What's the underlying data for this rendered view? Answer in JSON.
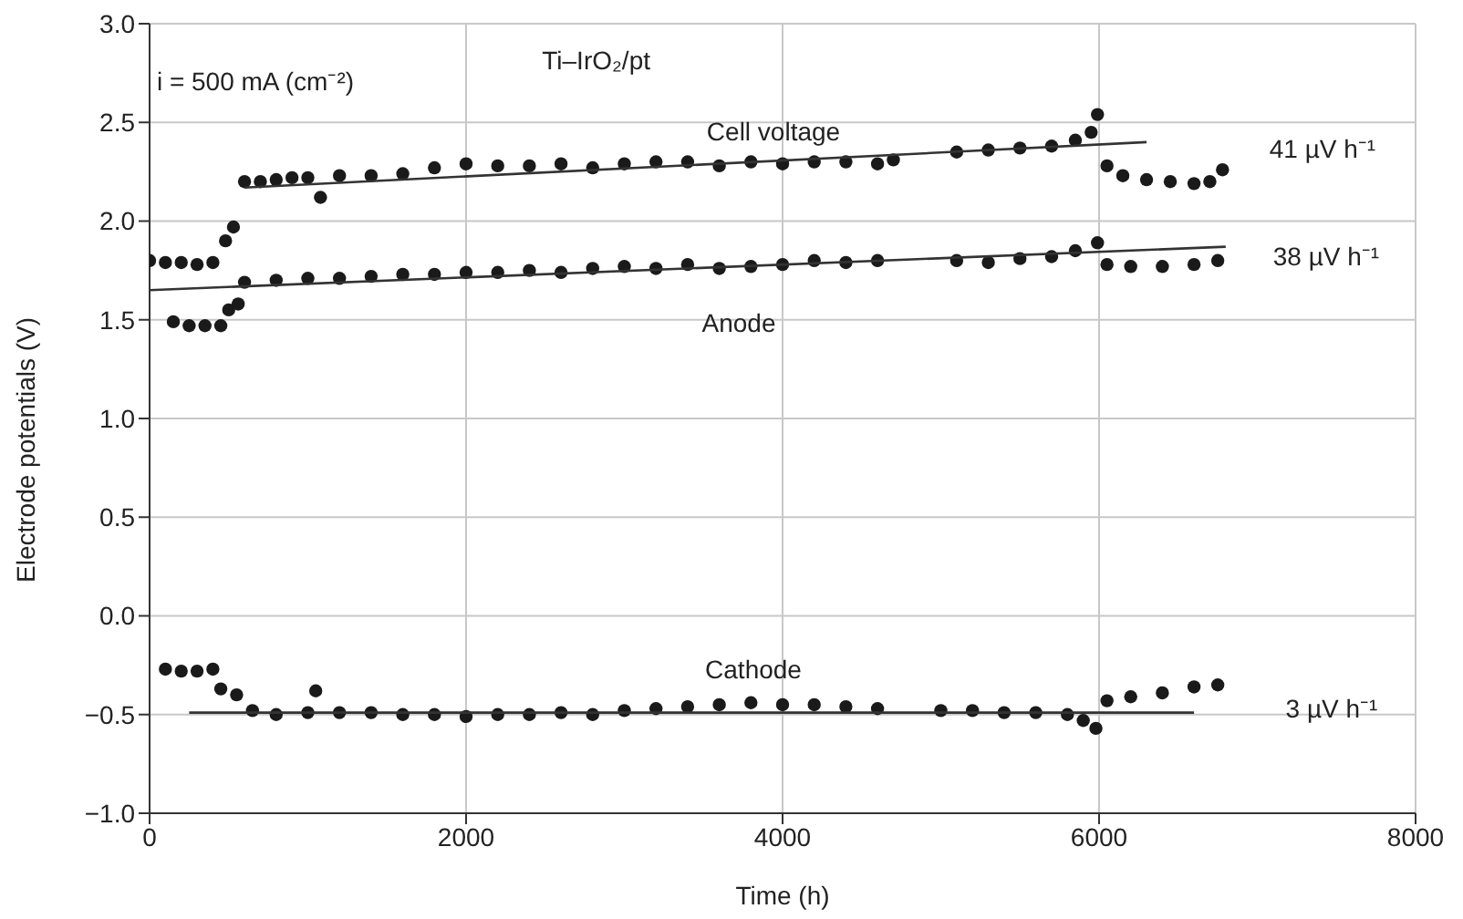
{
  "chart_data": {
    "type": "scatter",
    "title": "Ti–IrO₂/pt",
    "xlabel": "Time (h)",
    "ylabel": "Electrode potentials (V)",
    "xlim": [
      0,
      8000
    ],
    "xticks": [
      0,
      2000,
      4000,
      6000,
      8000
    ],
    "ylim": [
      -1,
      3
    ],
    "yticks": [
      {
        "value": -1,
        "label": "−1.0"
      },
      {
        "value": -0.5,
        "label": "−0.5"
      },
      {
        "value": 0,
        "label": "0.0"
      },
      {
        "value": 0.5,
        "label": "0.5"
      },
      {
        "value": 1,
        "label": "1.0"
      },
      {
        "value": 1.5,
        "label": "1.5"
      },
      {
        "value": 2,
        "label": "2.0"
      },
      {
        "value": 2.5,
        "label": "2.5"
      },
      {
        "value": 3,
        "label": "3.0"
      }
    ],
    "grid": true,
    "series": [
      {
        "color": "#1a1a1a",
        "marker": "circle",
        "x": [
          0,
          100,
          200,
          300,
          400,
          480,
          530,
          600,
          700,
          800,
          900,
          1000,
          1080,
          1200,
          1400,
          1600,
          1800,
          2000,
          2200,
          2400,
          2600,
          2800,
          3000,
          3200,
          3400,
          3600,
          3800,
          4000,
          4200,
          4400,
          4600,
          4700,
          5100,
          5300,
          5500,
          5700,
          5850,
          5950,
          5990,
          6050,
          6150,
          6300,
          6450,
          6600,
          6700,
          6780
        ],
        "values": [
          1.8,
          1.79,
          1.79,
          1.78,
          1.79,
          1.9,
          1.97,
          2.2,
          2.2,
          2.21,
          2.22,
          2.22,
          2.12,
          2.23,
          2.23,
          2.24,
          2.27,
          2.29,
          2.28,
          2.28,
          2.29,
          2.27,
          2.29,
          2.3,
          2.3,
          2.28,
          2.3,
          2.29,
          2.3,
          2.3,
          2.29,
          2.31,
          2.35,
          2.36,
          2.37,
          2.38,
          2.41,
          2.45,
          2.54,
          2.28,
          2.23,
          2.21,
          2.2,
          2.19,
          2.2,
          2.26
        ]
      },
      {
        "color": "#1a1a1a",
        "marker": "circle",
        "x": [
          150,
          250,
          350,
          450,
          500,
          560,
          600,
          800,
          1000,
          1200,
          1400,
          1600,
          1800,
          2000,
          2200,
          2400,
          2600,
          2800,
          3000,
          3200,
          3400,
          3600,
          3800,
          4000,
          4200,
          4400,
          4600,
          5100,
          5300,
          5500,
          5700,
          5850,
          5990,
          6050,
          6200,
          6400,
          6600,
          6750
        ],
        "values": [
          1.49,
          1.47,
          1.47,
          1.47,
          1.55,
          1.58,
          1.69,
          1.7,
          1.71,
          1.71,
          1.72,
          1.73,
          1.73,
          1.74,
          1.74,
          1.75,
          1.74,
          1.76,
          1.77,
          1.76,
          1.78,
          1.76,
          1.77,
          1.78,
          1.8,
          1.79,
          1.8,
          1.8,
          1.79,
          1.81,
          1.82,
          1.85,
          1.89,
          1.78,
          1.77,
          1.77,
          1.78,
          1.8
        ]
      },
      {
        "color": "#1a1a1a",
        "marker": "circle",
        "x": [
          100,
          200,
          300,
          400,
          450,
          550,
          650,
          800,
          1000,
          1050,
          1200,
          1400,
          1600,
          1800,
          2000,
          2200,
          2400,
          2600,
          2800,
          3000,
          3200,
          3400,
          3600,
          3800,
          4000,
          4200,
          4400,
          4600,
          5000,
          5200,
          5400,
          5600,
          5800,
          5900,
          5980,
          6050,
          6200,
          6400,
          6600,
          6750
        ],
        "values": [
          -0.27,
          -0.28,
          -0.28,
          -0.27,
          -0.37,
          -0.4,
          -0.48,
          -0.5,
          -0.49,
          -0.38,
          -0.49,
          -0.49,
          -0.5,
          -0.5,
          -0.51,
          -0.5,
          -0.5,
          -0.49,
          -0.5,
          -0.48,
          -0.47,
          -0.46,
          -0.45,
          -0.44,
          -0.45,
          -0.45,
          -0.46,
          -0.47,
          -0.48,
          -0.48,
          -0.49,
          -0.49,
          -0.5,
          -0.53,
          -0.57,
          -0.43,
          -0.41,
          -0.39,
          -0.36,
          -0.35
        ]
      },
      {
        "type": "line",
        "color": "#333333",
        "marker": "none",
        "line_style": "solid",
        "x": [
          600,
          6300
        ],
        "values": [
          2.17,
          2.4
        ]
      },
      {
        "type": "line",
        "color": "#333333",
        "marker": "none",
        "line_style": "solid",
        "x": [
          0,
          6800
        ],
        "values": [
          1.65,
          1.87
        ]
      },
      {
        "type": "line",
        "color": "#333333",
        "marker": "none",
        "line_style": "solid",
        "x": [
          250,
          6600
        ],
        "values": [
          -0.49,
          -0.49
        ]
      }
    ],
    "annotations": [
      "i = 500 mA (cm⁻²)",
      "Cell voltage",
      "Anode",
      "Cathode",
      "41 µV h⁻¹",
      "38 µV h⁻¹",
      "3 µV h⁻¹"
    ]
  }
}
